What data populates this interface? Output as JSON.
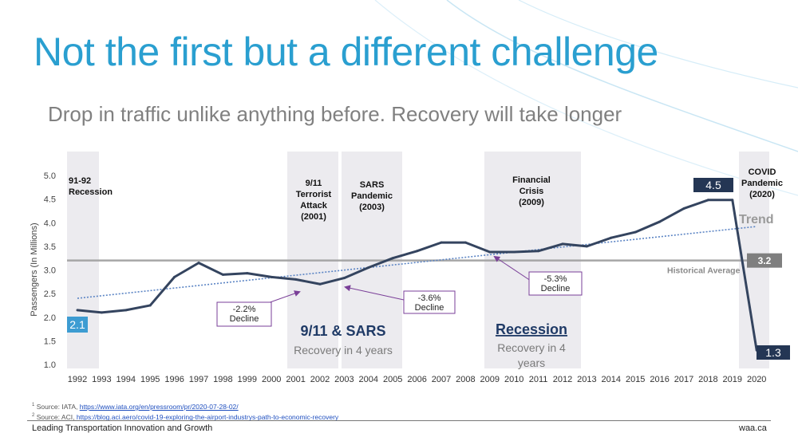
{
  "slide": {
    "title": "Not the first but a different challenge",
    "subtitle": "Drop in traffic unlike anything before. Recovery will take longer"
  },
  "chart_data": {
    "type": "line",
    "ylabel": "Passengers (In Millions)",
    "ylim": [
      1.0,
      5.0
    ],
    "yticks": [
      "1.0",
      "1.5",
      "2.0",
      "2.5",
      "3.0",
      "3.5",
      "4.0",
      "4.5",
      "5.0"
    ],
    "categories": [
      "1992",
      "1993",
      "1994",
      "1995",
      "1996",
      "1997",
      "1998",
      "1999",
      "2000",
      "2001",
      "2002",
      "2003",
      "2004",
      "2005",
      "2006",
      "2007",
      "2008",
      "2009",
      "2010",
      "2011",
      "2012",
      "2013",
      "2014",
      "2015",
      "2016",
      "2017",
      "2018",
      "2019",
      "2020"
    ],
    "series": [
      {
        "values": [
          2.15,
          2.1,
          2.15,
          2.25,
          2.85,
          3.15,
          2.9,
          2.93,
          2.85,
          2.8,
          2.7,
          2.83,
          3.05,
          3.25,
          3.4,
          3.58,
          3.58,
          3.38,
          3.38,
          3.4,
          3.55,
          3.5,
          3.68,
          3.8,
          4.02,
          4.3,
          4.48,
          4.48,
          1.3
        ]
      }
    ],
    "trend": {
      "label": "Trend",
      "start": 2.4,
      "end": 3.92
    },
    "historical_average": {
      "label": "Historical Average",
      "value": 3.2,
      "value_label": "3.2"
    },
    "value_labels": {
      "start": "2.1",
      "peak": "4.5",
      "end": "1.3"
    },
    "grid": false,
    "shaded_periods": [
      {
        "label_lines": [
          "91-92",
          "Recession"
        ],
        "from": "1992",
        "to": "1993"
      },
      {
        "label_lines": [
          "9/11",
          "Terrorist",
          "Attack",
          "(2001)"
        ],
        "from": "2001",
        "to": "2003"
      },
      {
        "label_lines": [
          "SARS",
          "Pandemic",
          "(2003)"
        ],
        "from": "2003",
        "to": "2005"
      },
      {
        "label_lines": [
          "Financial",
          "Crisis",
          "(2009)"
        ],
        "from": "2009",
        "to": "2013"
      },
      {
        "label_lines": [
          "COVID",
          "Pandemic",
          "(2020)"
        ],
        "from": "2019",
        "to": "2021"
      }
    ],
    "callouts": [
      {
        "lines": [
          "-2.2%",
          "Decline"
        ]
      },
      {
        "lines": [
          "-3.6%",
          "Decline"
        ]
      },
      {
        "lines": [
          "-5.3%",
          "Decline"
        ]
      }
    ],
    "recovery_notes": [
      {
        "heading": "9/11 & SARS",
        "lines": [
          "Recovery in 4 years"
        ]
      },
      {
        "heading": "Recession",
        "lines": [
          "Recovery in 4",
          "years"
        ]
      }
    ]
  },
  "colors": {
    "title": "#2a9fd0",
    "series": "#34445f",
    "trend": "#5b84c4",
    "average": "#a6a6a6",
    "band": "#ecebef",
    "callout_border": "#7a3f98",
    "start_badge": "#3d9cd2",
    "navy_badge": "#243654"
  },
  "footer": {
    "source1_label": "Source: IATA, ",
    "source1_link": "https://www.iata.org/en/pressroom/pr/2020-07-28-02/",
    "source2_label": "Source: ACI, ",
    "source2_link": "https://blog.aci.aero/covid-19-exploring-the-airport-industrys-path-to-economic-recovery",
    "tagline": "Leading Transportation Innovation and Growth",
    "site": "waa.ca"
  }
}
